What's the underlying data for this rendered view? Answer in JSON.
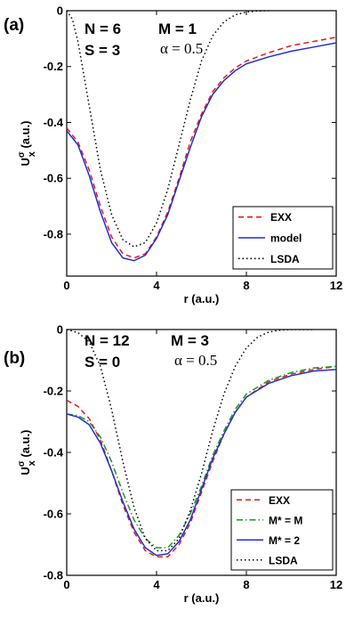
{
  "chart_data": [
    {
      "type": "line",
      "panel_label": "(a)",
      "annotations": {
        "n": "N = 6",
        "m": "M = 1",
        "s": "S = 3",
        "alpha": "α = 0.5"
      },
      "xlabel": "r (a.u.)",
      "ylabel": {
        "base": "U",
        "sup": "σ",
        "sub": "x",
        "unit": " (a.u.)"
      },
      "xlim": [
        0,
        12
      ],
      "ylim": [
        -0.95,
        0
      ],
      "xticks": [
        "0",
        "4",
        "8",
        "12"
      ],
      "yticks": [
        "0",
        "-0.2",
        "-0.4",
        "-0.6",
        "-0.8"
      ],
      "legend_position": "bottom-right",
      "series": [
        {
          "name": "EXX",
          "color": "#e41a1c",
          "style": "dashed",
          "x": [
            0,
            0.5,
            1,
            1.5,
            2,
            2.5,
            3,
            3.5,
            4,
            4.5,
            5,
            5.5,
            6,
            6.5,
            7,
            7.5,
            8,
            9,
            10,
            11,
            12
          ],
          "y": [
            -0.42,
            -0.47,
            -0.57,
            -0.7,
            -0.81,
            -0.87,
            -0.885,
            -0.87,
            -0.81,
            -0.72,
            -0.6,
            -0.47,
            -0.37,
            -0.29,
            -0.24,
            -0.205,
            -0.18,
            -0.15,
            -0.125,
            -0.11,
            -0.095
          ]
        },
        {
          "name": "model",
          "color": "#1f2fd6",
          "style": "solid",
          "x": [
            0,
            0.5,
            1,
            1.5,
            2,
            2.5,
            3,
            3.5,
            4,
            4.5,
            5,
            5.5,
            6,
            6.5,
            7,
            7.5,
            8,
            9,
            10,
            11,
            12
          ],
          "y": [
            -0.43,
            -0.48,
            -0.59,
            -0.72,
            -0.83,
            -0.885,
            -0.895,
            -0.875,
            -0.815,
            -0.73,
            -0.61,
            -0.49,
            -0.38,
            -0.3,
            -0.25,
            -0.215,
            -0.19,
            -0.165,
            -0.145,
            -0.13,
            -0.115
          ]
        },
        {
          "name": "LSDA",
          "color": "#000000",
          "style": "dotted",
          "x": [
            0,
            0.25,
            0.5,
            1,
            1.5,
            2,
            2.5,
            3,
            3.5,
            4,
            4.5,
            5,
            5.5,
            6,
            6.5,
            7,
            7.5,
            8,
            8.5,
            9
          ],
          "y": [
            0.0,
            -0.03,
            -0.11,
            -0.34,
            -0.57,
            -0.73,
            -0.82,
            -0.845,
            -0.83,
            -0.76,
            -0.64,
            -0.48,
            -0.32,
            -0.18,
            -0.09,
            -0.04,
            -0.015,
            -0.005,
            -0.001,
            0.0
          ]
        }
      ]
    },
    {
      "type": "line",
      "panel_label": "(b)",
      "annotations": {
        "n": "N = 12",
        "m": "M = 3",
        "s": "S = 0",
        "alpha": "α = 0.5"
      },
      "xlabel": "r (a.u.)",
      "ylabel": {
        "base": "U",
        "sup": "σ",
        "sub": "x",
        "unit": " (a.u.)"
      },
      "xlim": [
        0,
        12
      ],
      "ylim": [
        -0.8,
        0
      ],
      "xticks": [
        "0",
        "4",
        "8",
        "12"
      ],
      "yticks": [
        "0",
        "-0.2",
        "-0.4",
        "-0.6",
        "-0.8"
      ],
      "legend_position": "bottom-right",
      "series": [
        {
          "name": "EXX",
          "color": "#e41a1c",
          "style": "dashed",
          "x": [
            0,
            0.5,
            1,
            1.5,
            2,
            2.5,
            3,
            3.5,
            4,
            4.5,
            5,
            5.5,
            6,
            6.5,
            7,
            7.5,
            8,
            9,
            10,
            11,
            12
          ],
          "y": [
            -0.23,
            -0.25,
            -0.29,
            -0.36,
            -0.46,
            -0.57,
            -0.66,
            -0.72,
            -0.74,
            -0.74,
            -0.7,
            -0.63,
            -0.53,
            -0.43,
            -0.34,
            -0.27,
            -0.22,
            -0.17,
            -0.145,
            -0.13,
            -0.12
          ]
        },
        {
          "name": "M* = M",
          "color": "#1a9a1a",
          "style": "dashdot",
          "x": [
            0,
            0.5,
            1,
            1.5,
            2,
            2.5,
            3,
            3.5,
            4,
            4.5,
            5,
            5.5,
            6,
            6.5,
            7,
            7.5,
            8,
            9,
            10,
            11,
            12
          ],
          "y": [
            -0.275,
            -0.28,
            -0.3,
            -0.35,
            -0.43,
            -0.53,
            -0.62,
            -0.68,
            -0.71,
            -0.71,
            -0.67,
            -0.6,
            -0.51,
            -0.41,
            -0.33,
            -0.26,
            -0.21,
            -0.165,
            -0.14,
            -0.125,
            -0.12
          ]
        },
        {
          "name": "M* = 2",
          "color": "#1f2fd6",
          "style": "solid",
          "x": [
            0,
            0.5,
            1,
            1.5,
            2,
            2.5,
            3,
            3.5,
            4,
            4.5,
            5,
            5.5,
            6,
            6.5,
            7,
            7.5,
            8,
            9,
            10,
            11,
            12
          ],
          "y": [
            -0.275,
            -0.285,
            -0.31,
            -0.37,
            -0.46,
            -0.56,
            -0.65,
            -0.71,
            -0.735,
            -0.73,
            -0.69,
            -0.62,
            -0.52,
            -0.42,
            -0.34,
            -0.27,
            -0.22,
            -0.175,
            -0.15,
            -0.135,
            -0.13
          ]
        },
        {
          "name": "LSDA",
          "color": "#000000",
          "style": "dotted",
          "x": [
            0,
            0.5,
            1,
            1.5,
            2,
            2.5,
            3,
            3.5,
            4,
            4.5,
            5,
            5.5,
            6,
            6.5,
            7,
            7.5,
            8,
            8.5,
            9,
            9.5,
            10,
            11
          ],
          "y": [
            0.0,
            -0.01,
            -0.04,
            -0.12,
            -0.26,
            -0.43,
            -0.58,
            -0.68,
            -0.72,
            -0.72,
            -0.68,
            -0.59,
            -0.47,
            -0.33,
            -0.21,
            -0.12,
            -0.06,
            -0.025,
            -0.008,
            -0.002,
            0.0,
            0.0
          ]
        }
      ]
    }
  ]
}
